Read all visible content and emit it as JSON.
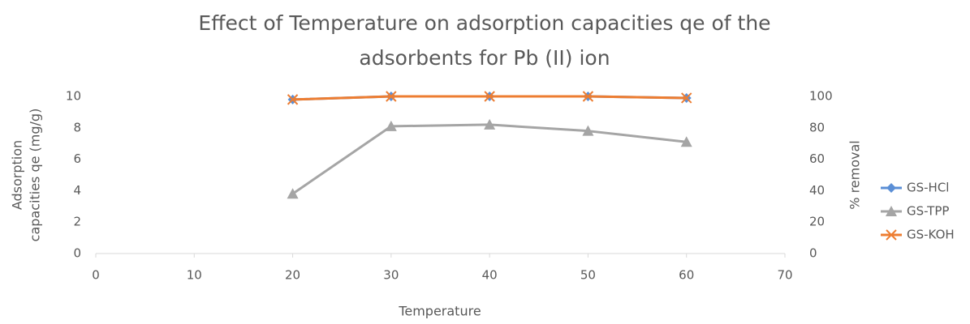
{
  "chart_data": {
    "type": "line",
    "title": [
      "Effect of Temperature on  adsorption capacities qe of the",
      "adsorbents for Pb (II) ion"
    ],
    "x_label": "Temperature",
    "y_label": [
      "Adsorption",
      "capacities qe (mg/g)"
    ],
    "y2_label": "% removal",
    "x": [
      20,
      30,
      40,
      50,
      60
    ],
    "xlim": [
      0,
      70
    ],
    "xticks": [
      0,
      10,
      20,
      30,
      40,
      50,
      60,
      70
    ],
    "ylim": [
      0,
      10
    ],
    "yticks": [
      0,
      2,
      4,
      6,
      8,
      10
    ],
    "y2lim": [
      0,
      100
    ],
    "y2ticks": [
      0,
      20,
      40,
      60,
      80,
      100
    ],
    "grid": false,
    "legend": "right",
    "series": [
      {
        "name": "GS-HCl",
        "color": "#5b8fd6",
        "marker": "diamond",
        "values": [
          9.8,
          10,
          10,
          10,
          9.9
        ]
      },
      {
        "name": "GS-TPP",
        "color": "#a5a5a5",
        "marker": "triangle",
        "values": [
          3.8,
          8.1,
          8.2,
          7.8,
          7.1
        ]
      },
      {
        "name": "GS-KOH",
        "color": "#ed7d31",
        "marker": "x",
        "axis": "y2",
        "values": [
          98,
          100,
          100,
          100,
          99
        ]
      }
    ]
  }
}
